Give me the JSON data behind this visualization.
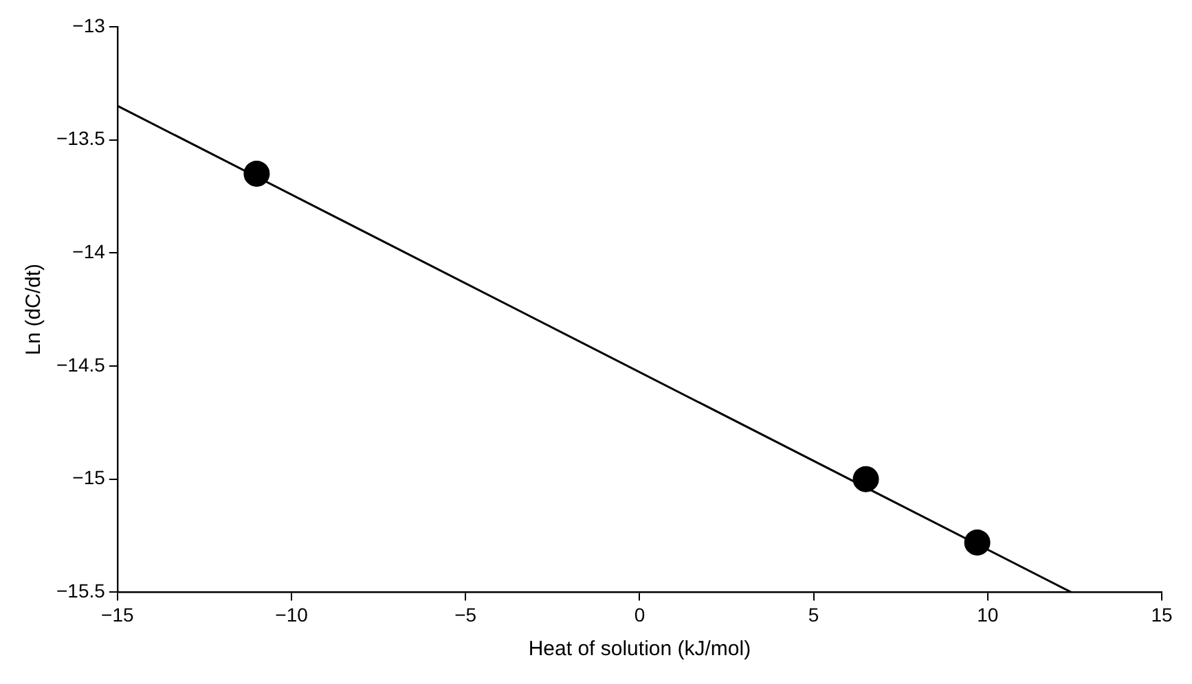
{
  "chart_data": {
    "type": "scatter",
    "xlabel": "Heat of solution (kJ/mol)",
    "ylabel": "Ln (dC/dt)",
    "xlim": [
      -15,
      15
    ],
    "ylim": [
      -15.5,
      -13
    ],
    "xticks": [
      {
        "value": -15,
        "label": "−15"
      },
      {
        "value": -10,
        "label": "−10"
      },
      {
        "value": -5,
        "label": "−5"
      },
      0,
      5,
      10,
      15
    ],
    "yticks": [
      {
        "value": -15.5,
        "label": "−15.5"
      },
      {
        "value": -15,
        "label": "−15"
      },
      {
        "value": -14.5,
        "label": "−14.5"
      },
      {
        "value": -14,
        "label": "−14"
      },
      {
        "value": -13.5,
        "label": "−13.5"
      },
      {
        "value": -13,
        "label": "−13"
      }
    ],
    "grid": false,
    "legend": false,
    "series": [
      {
        "color": "#000000",
        "marker": "circle",
        "x": [
          -11,
          6.5,
          9.7
        ],
        "values": [
          -13.65,
          -15.0,
          -15.28
        ]
      },
      {
        "type": "line",
        "color": "#000000",
        "marker": "none",
        "line_style": "solid",
        "x": [
          -15,
          12.4
        ],
        "values": [
          -13.35,
          -15.5
        ]
      }
    ]
  }
}
